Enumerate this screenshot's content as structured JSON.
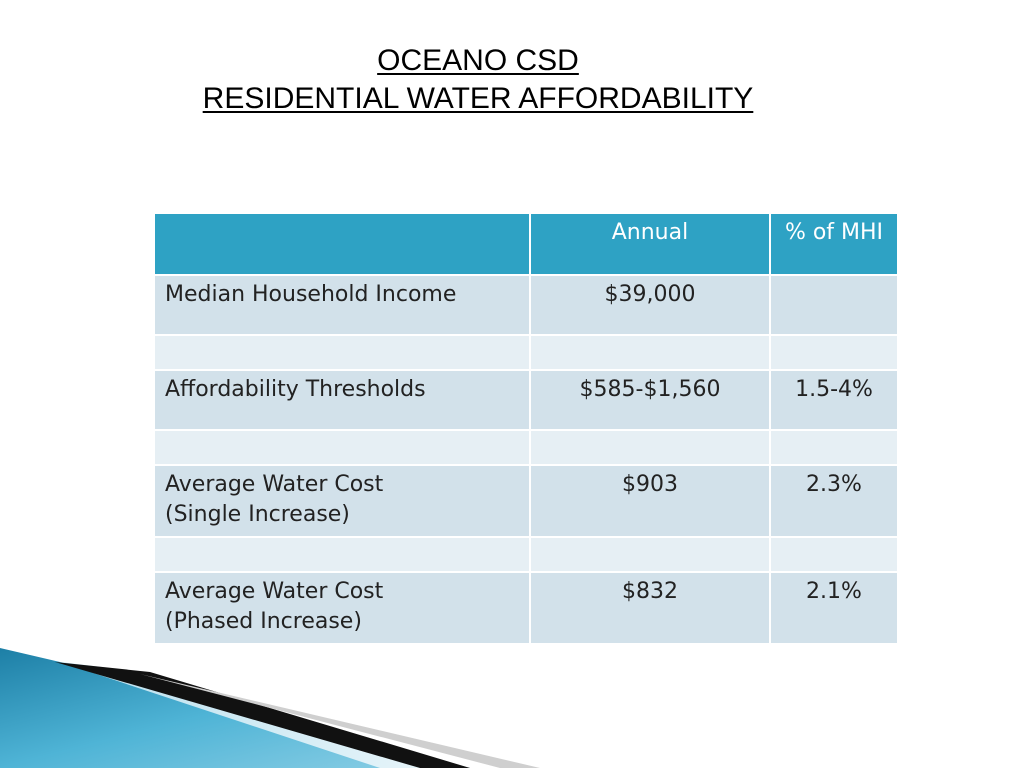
{
  "title": {
    "line1": "OCEANO CSD",
    "line2": "RESIDENTIAL WATER AFFORDABILITY"
  },
  "table": {
    "headers": [
      "",
      "Annual",
      "% of MHI"
    ],
    "rows": [
      {
        "label_line1": "Median Household Income",
        "label_line2": "",
        "annual": "$39,000",
        "pct": ""
      },
      {
        "label_line1": "Affordability Thresholds",
        "label_line2": "",
        "annual": "$585-$1,560",
        "pct": "1.5-4%"
      },
      {
        "label_line1": "Average Water Cost",
        "label_line2": "(Single Increase)",
        "annual": "$903",
        "pct": "2.3%"
      },
      {
        "label_line1": "Average Water Cost",
        "label_line2": "(Phased Increase)",
        "annual": "$832",
        "pct": "2.1%"
      }
    ]
  },
  "colors": {
    "header_bg": "#2ea2c4",
    "cell_bg": "#d2e1ea",
    "spacer_bg": "#e6eff4"
  }
}
